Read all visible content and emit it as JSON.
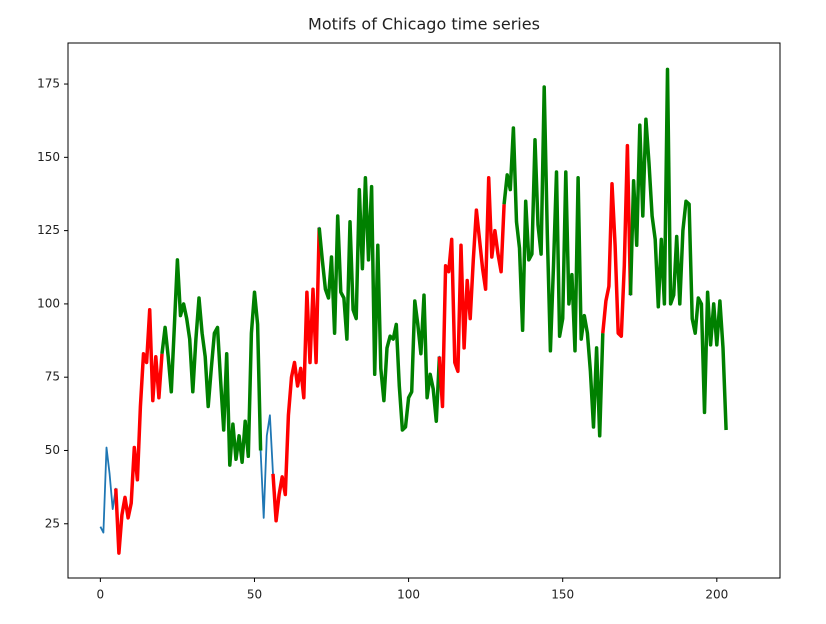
{
  "chart_data": {
    "type": "line",
    "title": "Motifs of Chicago time series",
    "xlim": [
      -10.5,
      220.5
    ],
    "xticks": [
      0,
      50,
      100,
      150,
      200
    ],
    "ylim": [
      6.5,
      189
    ],
    "yticks": [
      25,
      50,
      75,
      100,
      125,
      150,
      175
    ],
    "grid": false,
    "series": [
      {
        "color": "#1f77b4",
        "values": [
          24,
          22,
          51,
          42,
          30,
          37,
          15,
          28,
          34,
          27,
          32,
          51,
          40,
          65,
          83,
          80,
          98,
          67,
          82,
          68,
          83,
          92,
          82,
          70,
          92,
          115,
          96,
          100,
          95,
          88,
          70,
          88,
          102,
          90,
          82,
          65,
          78,
          90,
          92,
          74,
          57,
          83,
          45,
          59,
          47,
          55,
          46,
          60,
          48,
          90,
          104,
          93,
          50,
          27,
          55,
          62,
          42,
          26,
          35,
          41,
          35,
          62,
          75,
          80,
          72,
          78,
          68,
          104,
          80,
          105,
          80,
          126,
          115,
          105,
          102,
          116,
          90,
          130,
          104,
          102,
          88,
          128,
          98,
          95,
          139,
          112,
          143,
          115,
          140,
          76,
          120,
          78,
          67,
          85,
          89,
          88,
          93,
          72,
          57,
          58,
          68,
          70,
          101,
          93,
          83,
          103,
          68,
          76,
          71,
          60,
          82,
          65,
          113,
          111,
          122,
          80,
          77,
          120,
          85,
          108,
          95,
          115,
          132,
          122,
          112,
          105,
          143,
          116,
          125,
          117,
          111,
          134,
          144,
          139,
          160,
          128,
          119,
          91,
          135,
          115,
          117,
          156,
          127,
          117,
          174,
          124,
          84,
          113,
          145,
          89,
          95,
          145,
          100,
          110,
          84,
          143,
          88,
          96,
          90,
          77,
          58,
          85,
          55,
          90,
          101,
          106,
          141,
          120,
          90,
          89,
          113,
          154,
          103,
          142,
          120,
          161,
          130,
          163,
          148,
          130,
          122,
          99,
          122,
          100,
          180,
          100,
          103,
          123,
          100,
          125,
          135,
          134,
          95,
          90,
          102,
          100,
          63,
          104,
          86,
          100,
          86,
          101,
          85,
          57
        ]
      }
    ],
    "segments": [
      {
        "start": 5,
        "end": 20,
        "color": "red"
      },
      {
        "start": 20,
        "end": 52,
        "color": "green"
      },
      {
        "start": 56,
        "end": 71,
        "color": "red"
      },
      {
        "start": 71,
        "end": 110,
        "color": "green"
      },
      {
        "start": 110,
        "end": 131,
        "color": "red"
      },
      {
        "start": 131,
        "end": 163,
        "color": "green"
      },
      {
        "start": 163,
        "end": 172,
        "color": "red"
      },
      {
        "start": 172,
        "end": 203,
        "color": "green"
      }
    ]
  }
}
